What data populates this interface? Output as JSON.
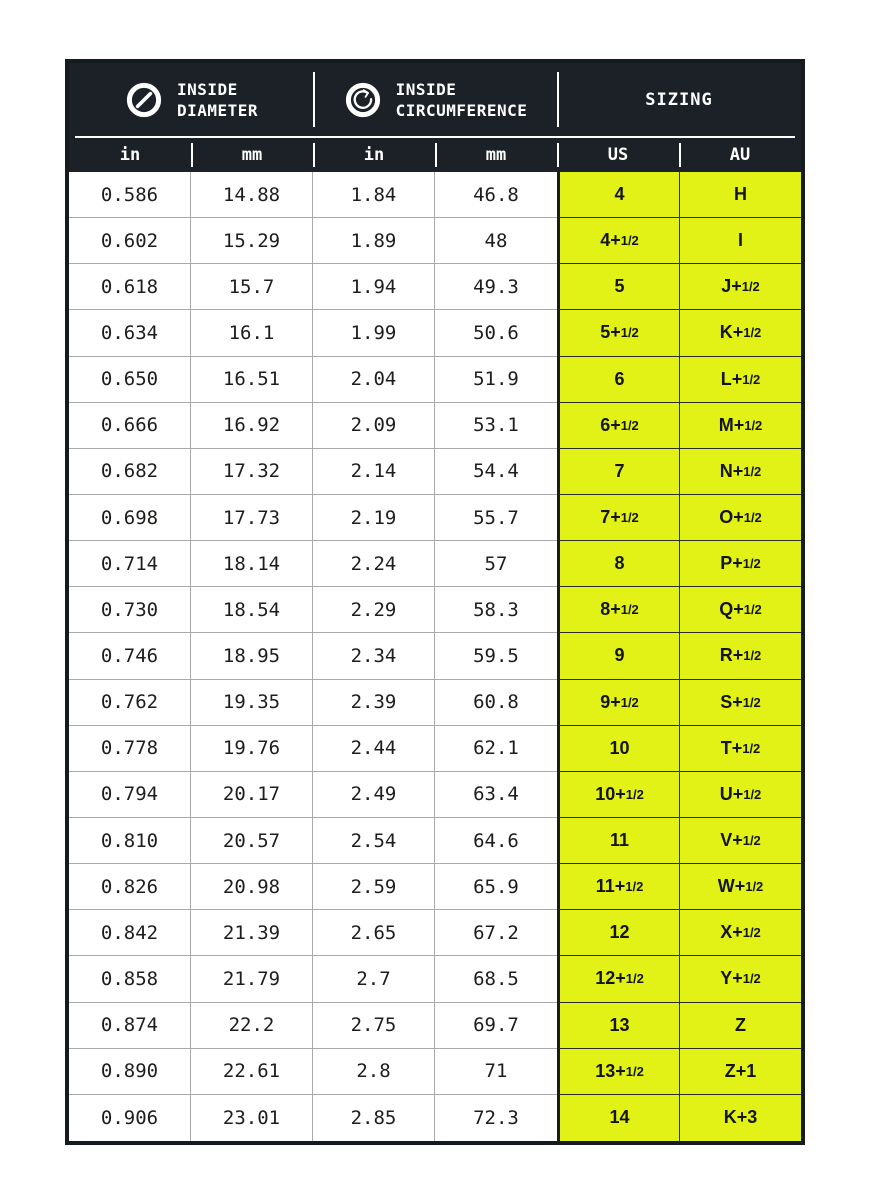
{
  "colors": {
    "header_bg": "#1b2127",
    "border_dark": "#161b1e",
    "accent_yellow": "#e3f216",
    "grid_light": "#aaaaaa",
    "grid_dark": "#2d2d25",
    "header_text": "#ffffff",
    "body_text": "#1d1d1b"
  },
  "header": {
    "groups": [
      {
        "icon": "diameter-icon",
        "label": "INSIDE\nDIAMETER"
      },
      {
        "icon": "circumference-icon",
        "label": "INSIDE\nCIRCUMFERENCE"
      },
      {
        "label": "SIZING"
      }
    ],
    "subcolumns": [
      "in",
      "mm",
      "in",
      "mm",
      "US",
      "AU"
    ]
  },
  "chart_data": {
    "type": "table",
    "column_groups": [
      "INSIDE DIAMETER",
      "INSIDE CIRCUMFERENCE",
      "SIZING"
    ],
    "columns": [
      "in",
      "mm",
      "in",
      "mm",
      "US",
      "AU"
    ],
    "rows": [
      [
        "0.586",
        "14.88",
        "1.84",
        "46.8",
        "4",
        "H"
      ],
      [
        "0.602",
        "15.29",
        "1.89",
        "48",
        "4+1/2",
        "I"
      ],
      [
        "0.618",
        "15.7",
        "1.94",
        "49.3",
        "5",
        "J+1/2"
      ],
      [
        "0.634",
        "16.1",
        "1.99",
        "50.6",
        "5+1/2",
        "K+1/2"
      ],
      [
        "0.650",
        "16.51",
        "2.04",
        "51.9",
        "6",
        "L+1/2"
      ],
      [
        "0.666",
        "16.92",
        "2.09",
        "53.1",
        "6+1/2",
        "M+1/2"
      ],
      [
        "0.682",
        "17.32",
        "2.14",
        "54.4",
        "7",
        "N+1/2"
      ],
      [
        "0.698",
        "17.73",
        "2.19",
        "55.7",
        "7+1/2",
        "O+1/2"
      ],
      [
        "0.714",
        "18.14",
        "2.24",
        "57",
        "8",
        "P+1/2"
      ],
      [
        "0.730",
        "18.54",
        "2.29",
        "58.3",
        "8+1/2",
        "Q+1/2"
      ],
      [
        "0.746",
        "18.95",
        "2.34",
        "59.5",
        "9",
        "R+1/2"
      ],
      [
        "0.762",
        "19.35",
        "2.39",
        "60.8",
        "9+1/2",
        "S+1/2"
      ],
      [
        "0.778",
        "19.76",
        "2.44",
        "62.1",
        "10",
        "T+1/2"
      ],
      [
        "0.794",
        "20.17",
        "2.49",
        "63.4",
        "10+1/2",
        "U+1/2"
      ],
      [
        "0.810",
        "20.57",
        "2.54",
        "64.6",
        "11",
        "V+1/2"
      ],
      [
        "0.826",
        "20.98",
        "2.59",
        "65.9",
        "11+1/2",
        "W+1/2"
      ],
      [
        "0.842",
        "21.39",
        "2.65",
        "67.2",
        "12",
        "X+1/2"
      ],
      [
        "0.858",
        "21.79",
        "2.7",
        "68.5",
        "12+1/2",
        "Y+1/2"
      ],
      [
        "0.874",
        "22.2",
        "2.75",
        "69.7",
        "13",
        "Z"
      ],
      [
        "0.890",
        "22.61",
        "2.8",
        "71",
        "13+1/2",
        "Z+1"
      ],
      [
        "0.906",
        "23.01",
        "2.85",
        "72.3",
        "14",
        "K+3"
      ]
    ]
  }
}
